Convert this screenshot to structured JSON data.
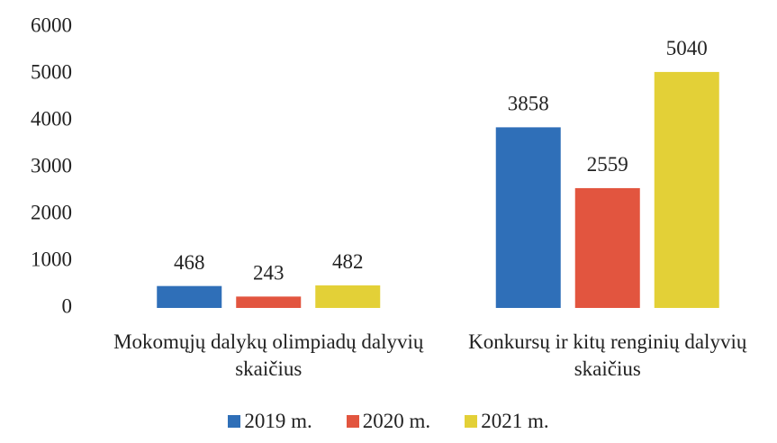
{
  "chart_data": {
    "type": "bar",
    "categories": [
      "Mokomųjų dalykų olimpiadų dalyvių skaičius",
      "Konkursų ir kitų renginių dalyvių skaičius"
    ],
    "series": [
      {
        "name": "2019 m.",
        "color": "#2f6fb8",
        "values": [
          468,
          3858
        ]
      },
      {
        "name": "2020 m.",
        "color": "#e2553f",
        "values": [
          243,
          2559
        ]
      },
      {
        "name": "2021 m.",
        "color": "#e3d037",
        "values": [
          482,
          5040
        ]
      }
    ],
    "ylim": [
      0,
      6000
    ],
    "yticks": [
      0,
      1000,
      2000,
      3000,
      4000,
      5000,
      6000
    ],
    "grid": false,
    "legend": "bottom"
  }
}
